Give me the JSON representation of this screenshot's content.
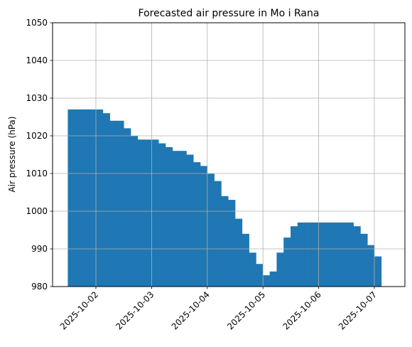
{
  "chart_data": {
    "type": "bar",
    "title": "Forecasted air pressure in Mo i Rana",
    "xlabel": "",
    "ylabel": "Air pressure (hPa)",
    "ylim": [
      980,
      1050
    ],
    "yticks": [
      "980",
      "990",
      "1000",
      "1010",
      "1020",
      "1030",
      "1040",
      "1050"
    ],
    "xticks": [
      "2025-10-02",
      "2025-10-03",
      "2025-10-04",
      "2025-10-05",
      "2025-10-06",
      "2025-10-07"
    ],
    "grid": true,
    "bar_color": "#1f77b4",
    "x_start": "2025-10-01 12:00",
    "x_step_hours": 3,
    "values": [
      1027,
      1027,
      1027,
      1027,
      1027,
      1026,
      1024,
      1024,
      1022,
      1020,
      1019,
      1019,
      1019,
      1018,
      1017,
      1016,
      1016,
      1015,
      1013,
      1012,
      1010,
      1008,
      1004,
      1003,
      998,
      994,
      989,
      986,
      983,
      984,
      989,
      993,
      996,
      997,
      997,
      997,
      997,
      997,
      997,
      997,
      997,
      996,
      994,
      991,
      988
    ]
  }
}
